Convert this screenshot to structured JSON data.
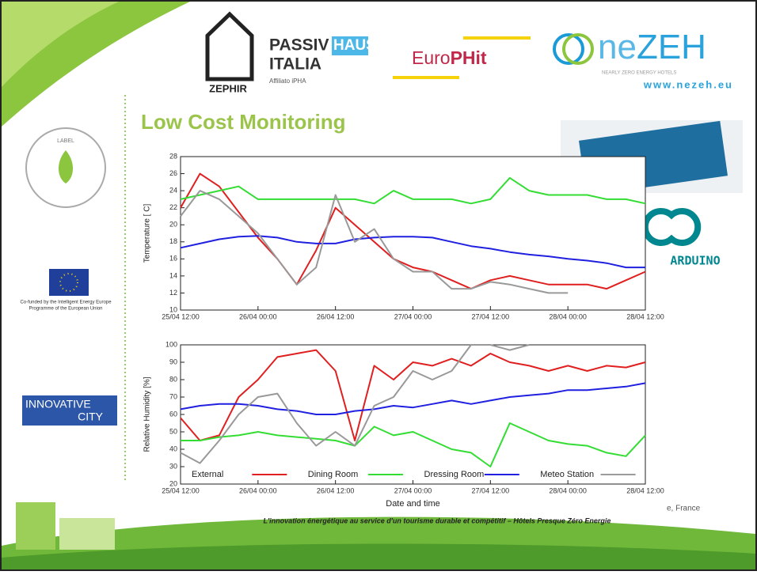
{
  "slide": {
    "title": "Low Cost Monitoring",
    "footer": "L'innovation énergétique au service d'un tourisme durable et compétitif –  Hôtels Presque Zéro Energie",
    "location": "e, France"
  },
  "logos": {
    "zephir": "ZEPHIR",
    "passiv": "PASSIV",
    "haus": "HAUS",
    "italia": "ITALIA",
    "affiliate": "Affiliato iPHA",
    "europhit_a": "Euro",
    "europhit_b": "PHit",
    "nezeh_a": "ne",
    "nezeh_b": "ZEH",
    "nezeh_tagline": "NEARLY ZERO ENERGY HOTELS",
    "nezeh_url": "www.nezeh.eu",
    "arduino": "ARDUINO",
    "label": "LABEL",
    "eu_line1": "Co-funded by the Intelligent Energy Europe",
    "eu_line2": "Programme of the European Union",
    "innovative": "INNOVATIVE",
    "city": "CITY"
  },
  "chart_data": [
    {
      "type": "line",
      "ylabel": "Temperature [ C]",
      "x": [
        "25/04 12:00",
        "25/04 15:00",
        "25/04 18:00",
        "25/04 21:00",
        "26/04 00:00",
        "26/04 03:00",
        "26/04 06:00",
        "26/04 09:00",
        "26/04 12:00",
        "26/04 15:00",
        "26/04 18:00",
        "26/04 21:00",
        "27/04 00:00",
        "27/04 03:00",
        "27/04 06:00",
        "27/04 09:00",
        "27/04 12:00",
        "27/04 15:00",
        "27/04 18:00",
        "27/04 21:00",
        "28/04 00:00",
        "28/04 03:00",
        "28/04 06:00",
        "28/04 09:00",
        "28/04 12:00"
      ],
      "xlim": [
        "25/04 12:00",
        "28/04 12:00"
      ],
      "xticks": [
        "25/04 12:00",
        "26/04 00:00",
        "26/04 12:00",
        "27/04 00:00",
        "27/04 12:00",
        "28/04 00:00",
        "28/04 12:00"
      ],
      "ylim": [
        10,
        28
      ],
      "yticks": [
        10,
        12,
        14,
        16,
        18,
        20,
        22,
        24,
        26,
        28
      ],
      "grid": false,
      "legend": false,
      "series": [
        {
          "color": "#e02020",
          "values": [
            22,
            26,
            24.5,
            21.5,
            18.5,
            16,
            13,
            17,
            22,
            20,
            18,
            16,
            15,
            14.5,
            13.5,
            12.5,
            13.5,
            14,
            13.5,
            13,
            13,
            13,
            12.5,
            13.5,
            14.5
          ]
        },
        {
          "color": "#33dd33",
          "values": [
            23,
            23.5,
            24,
            24.5,
            23,
            23,
            23,
            23,
            23,
            23,
            22.5,
            24,
            23,
            23,
            23,
            22.5,
            23,
            25.5,
            24,
            23.5,
            23.5,
            23.5,
            23,
            23,
            22.5
          ]
        },
        {
          "color": "#2020e0",
          "values": [
            17.3,
            17.8,
            18.3,
            18.6,
            18.7,
            18.5,
            18,
            17.8,
            17.8,
            18.3,
            18.5,
            18.6,
            18.6,
            18.5,
            18,
            17.5,
            17.2,
            16.8,
            16.5,
            16.3,
            16,
            15.8,
            15.5,
            15,
            15
          ]
        },
        {
          "color": "#999999",
          "values": [
            21,
            24,
            23,
            21,
            19,
            16,
            13,
            15,
            23.5,
            18,
            19.5,
            16,
            14.5,
            14.5,
            12.5,
            12.5,
            13.3,
            13,
            12.5,
            12,
            12,
            null,
            null,
            null,
            null
          ]
        }
      ]
    },
    {
      "type": "line",
      "ylabel": "Relative Humidity [%]",
      "xlabel": "Date and time",
      "x": [
        "25/04 12:00",
        "25/04 15:00",
        "25/04 18:00",
        "25/04 21:00",
        "26/04 00:00",
        "26/04 03:00",
        "26/04 06:00",
        "26/04 09:00",
        "26/04 12:00",
        "26/04 15:00",
        "26/04 18:00",
        "26/04 21:00",
        "27/04 00:00",
        "27/04 03:00",
        "27/04 06:00",
        "27/04 09:00",
        "27/04 12:00",
        "27/04 15:00",
        "27/04 18:00",
        "27/04 21:00",
        "28/04 00:00",
        "28/04 03:00",
        "28/04 06:00",
        "28/04 09:00",
        "28/04 12:00"
      ],
      "xlim": [
        "25/04 12:00",
        "28/04 12:00"
      ],
      "xticks": [
        "25/04 12:00",
        "26/04 00:00",
        "26/04 12:00",
        "27/04 00:00",
        "27/04 12:00",
        "28/04 00:00",
        "28/04 12:00"
      ],
      "ylim": [
        20,
        100
      ],
      "yticks": [
        20,
        30,
        40,
        50,
        60,
        70,
        80,
        90,
        100
      ],
      "grid": false,
      "legend": "bottom",
      "series": [
        {
          "name": "External",
          "color": "#e02020",
          "values": [
            58,
            45,
            48,
            70,
            80,
            93,
            95,
            97,
            85,
            45,
            88,
            80,
            90,
            88,
            92,
            88,
            95,
            90,
            88,
            85,
            88,
            85,
            88,
            87,
            90
          ]
        },
        {
          "name": "Dining Room",
          "color": "#33dd33",
          "values": [
            45,
            45,
            47,
            48,
            50,
            48,
            47,
            46,
            45,
            42,
            53,
            48,
            50,
            45,
            40,
            38,
            30,
            55,
            50,
            45,
            43,
            42,
            38,
            36,
            48
          ]
        },
        {
          "name": "Dressing Room",
          "color": "#2020e0",
          "values": [
            63,
            65,
            66,
            66,
            65,
            63,
            62,
            60,
            60,
            62,
            63,
            65,
            64,
            66,
            68,
            66,
            68,
            70,
            71,
            72,
            74,
            74,
            75,
            76,
            78
          ]
        },
        {
          "name": "Meteo Station",
          "color": "#999999",
          "values": [
            38,
            32,
            45,
            60,
            70,
            72,
            55,
            42,
            50,
            42,
            65,
            70,
            85,
            80,
            85,
            100,
            100,
            97,
            100,
            null,
            null,
            null,
            null,
            null,
            null
          ]
        }
      ]
    }
  ]
}
